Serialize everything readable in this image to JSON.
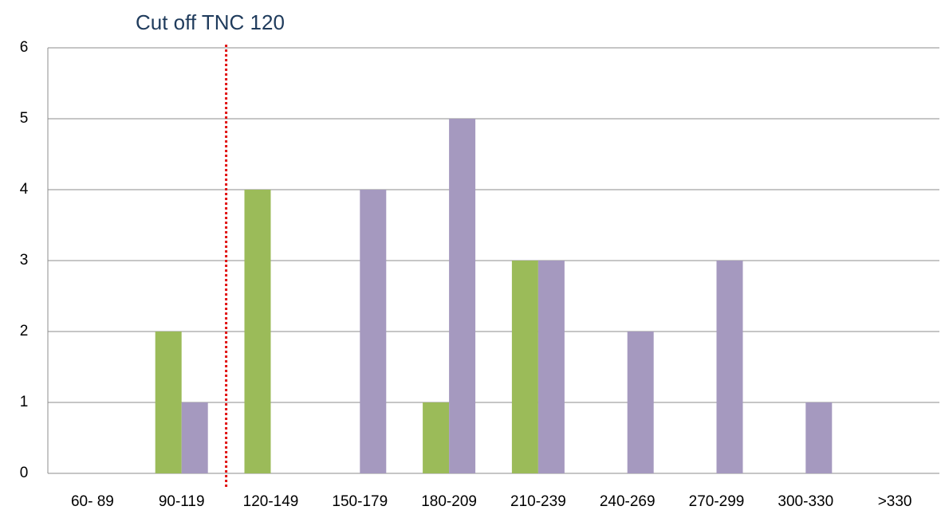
{
  "chart_data": {
    "type": "bar",
    "annotation": {
      "text": "Cut off TNC 120",
      "category": "120-149"
    },
    "categories": [
      "60- 89",
      "90-119",
      "120-149",
      "150-179",
      "180-209",
      "210-239",
      "240-269",
      "270-299",
      "300-330",
      ">330"
    ],
    "series": [
      {
        "color": "#9bbb59",
        "values": [
          0,
          2,
          4,
          0,
          1,
          3,
          0,
          0,
          0,
          0
        ]
      },
      {
        "color": "#a599bf",
        "values": [
          0,
          1,
          0,
          4,
          5,
          3,
          2,
          3,
          1,
          0
        ]
      }
    ],
    "ylim": [
      0,
      6
    ],
    "yticks": [
      0,
      1,
      2,
      3,
      4,
      5,
      6
    ],
    "grid": true
  }
}
